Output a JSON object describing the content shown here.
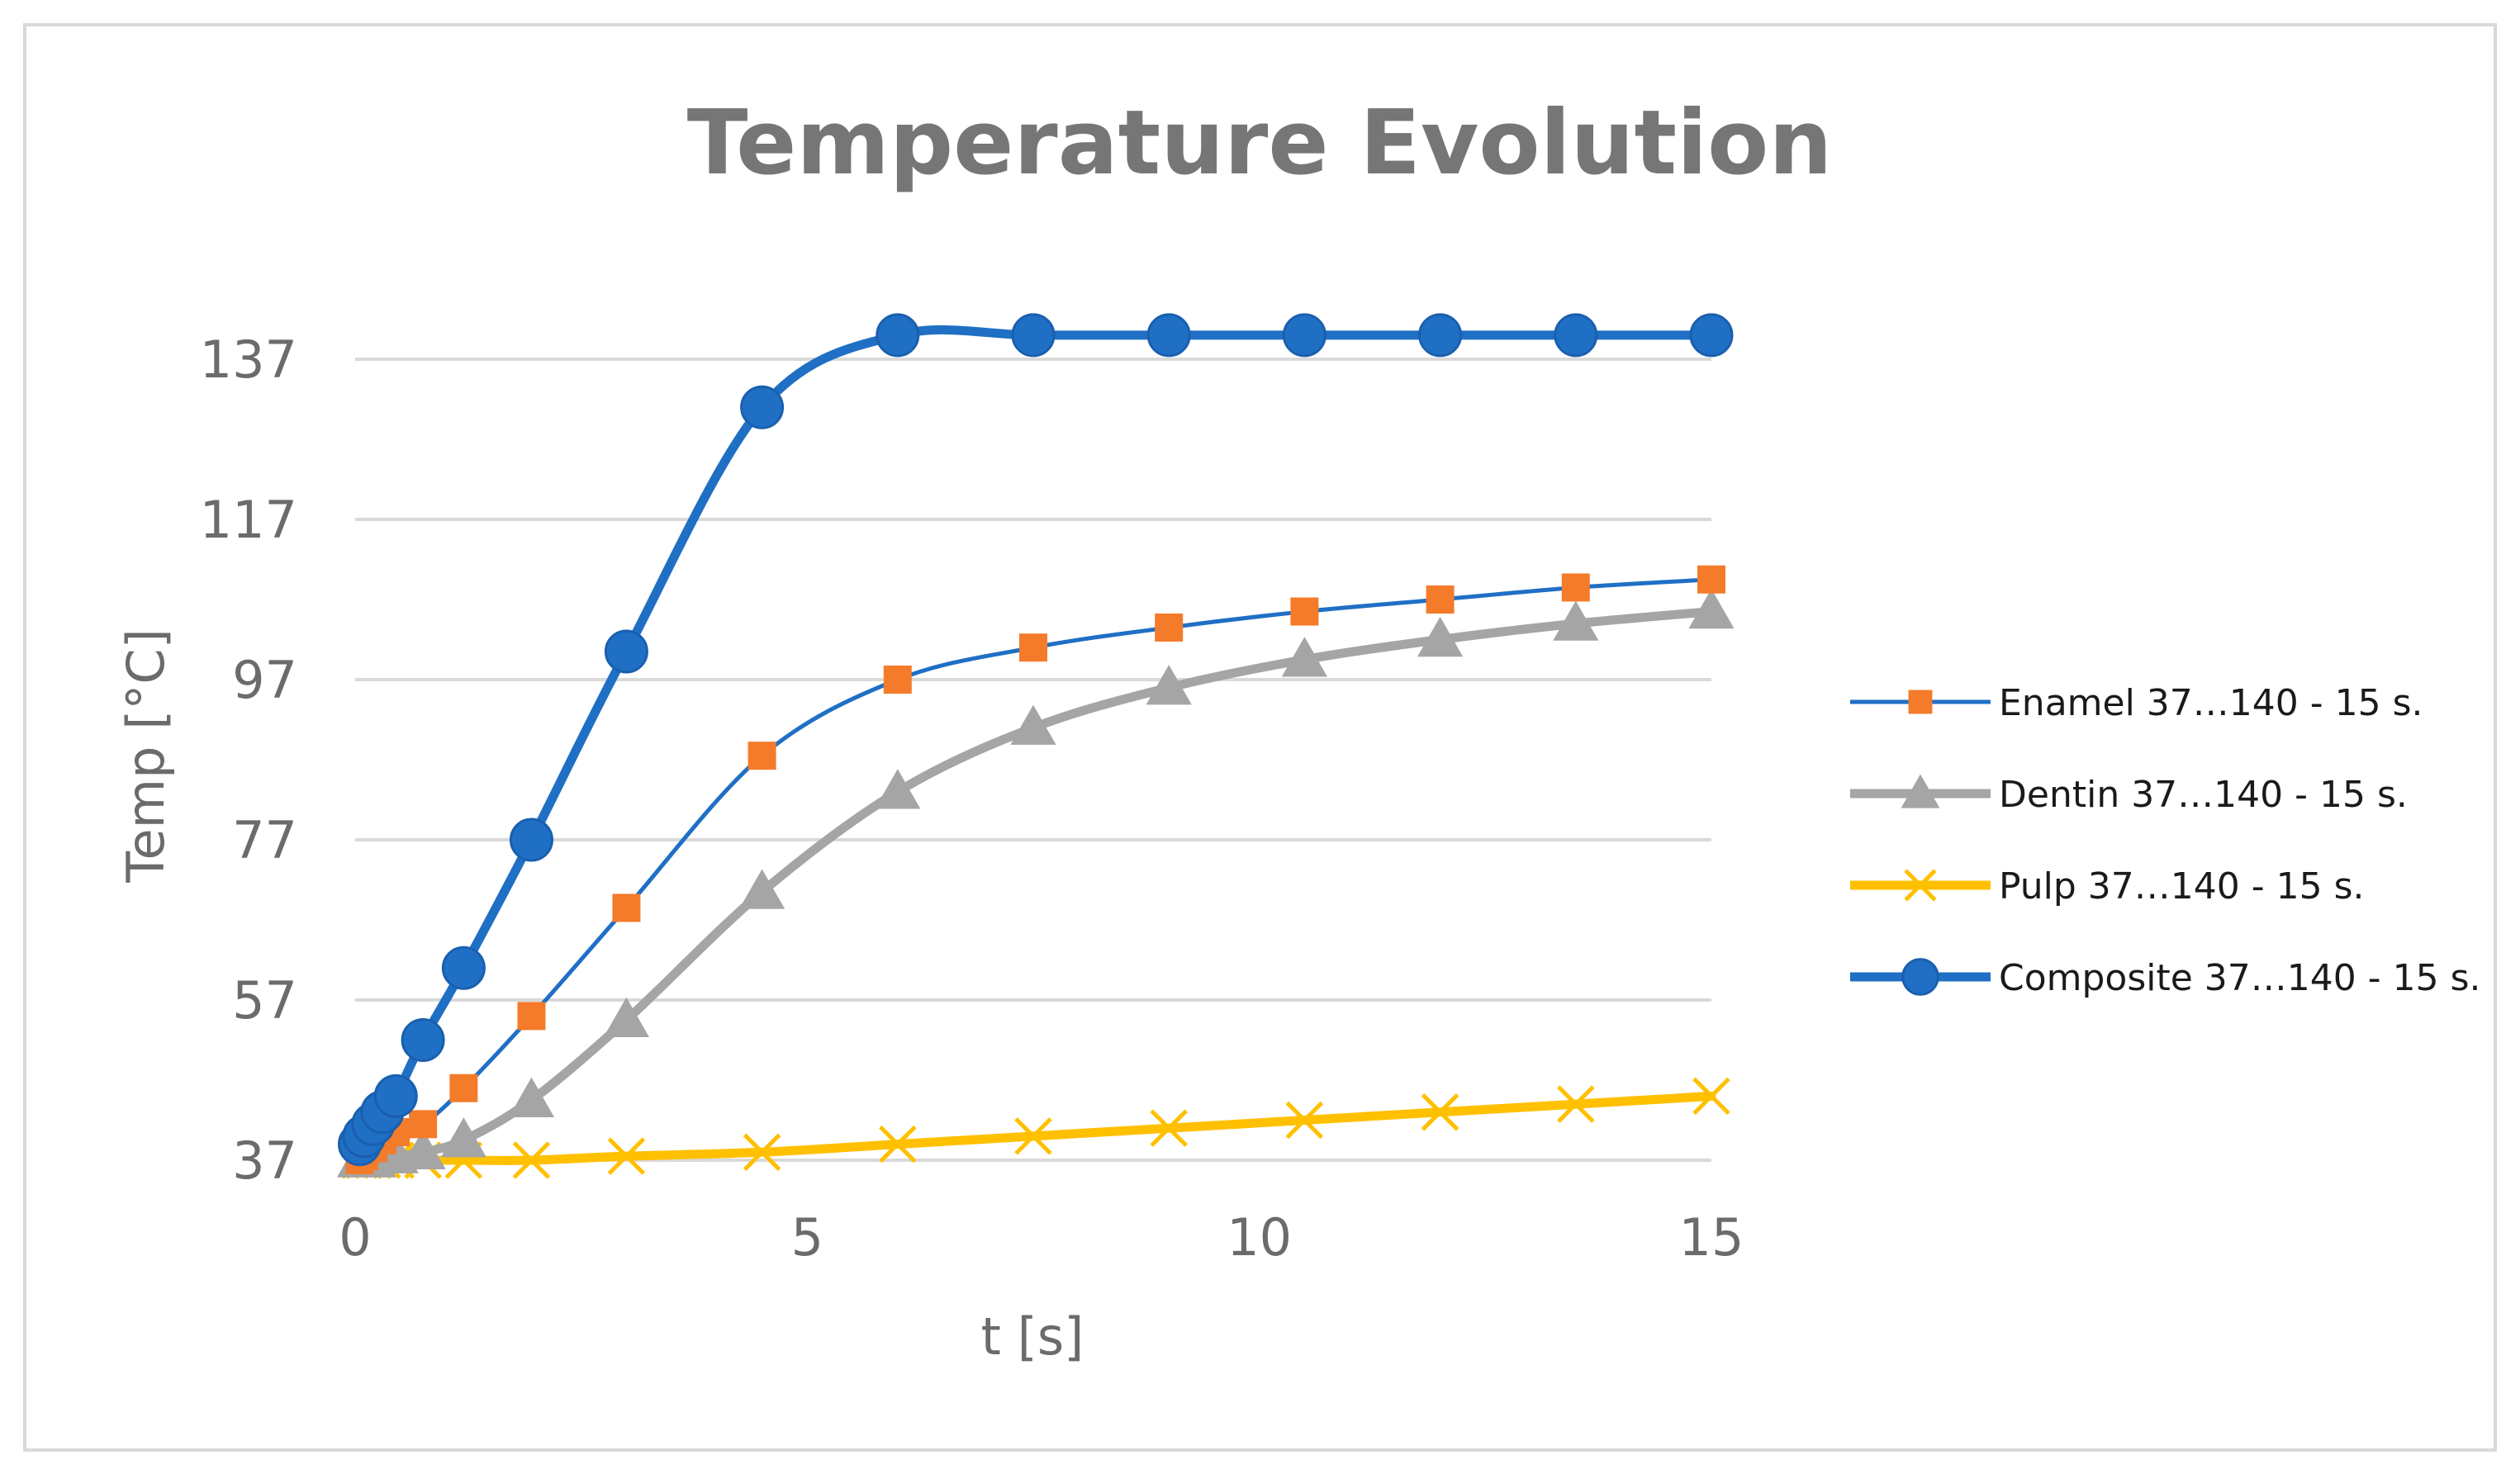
{
  "chart_data": {
    "type": "line",
    "title": "Temperature Evolution",
    "xlabel": "t [s]",
    "ylabel": "Temp [°C]",
    "xlim": [
      0,
      15
    ],
    "ylim": [
      37,
      137
    ],
    "xticks": [
      "0",
      "5",
      "10",
      "15"
    ],
    "xtick_values": [
      0,
      5,
      10,
      15
    ],
    "yticks": [
      "37",
      "57",
      "77",
      "97",
      "117",
      "137"
    ],
    "ytick_values": [
      37,
      57,
      77,
      97,
      117,
      137
    ],
    "grid": true,
    "legend_position": "right",
    "series": [
      {
        "name": "Enamel 37…140 - 15 s.",
        "color": "#1f6fc5",
        "marker_color": "#f47b2a",
        "marker": "square",
        "line_width": "thin",
        "x": [
          0.05,
          0.1,
          0.2,
          0.3,
          0.45,
          0.75,
          1.2,
          1.95,
          3.0,
          4.5,
          6.0,
          7.5,
          9.0,
          10.5,
          12.0,
          13.5,
          15.0
        ],
        "y": [
          37.0,
          37.5,
          38.5,
          39.5,
          40.5,
          41.5,
          46.0,
          55.0,
          68.5,
          87.5,
          97.0,
          101.0,
          103.5,
          105.5,
          107.0,
          108.5,
          109.5
        ]
      },
      {
        "name": "Dentin 37…140 - 15 s.",
        "color": "#a5a5a5",
        "marker_color": "#a5a5a5",
        "marker": "triangle",
        "line_width": "thick",
        "x": [
          0.05,
          0.1,
          0.2,
          0.3,
          0.45,
          0.75,
          1.2,
          1.95,
          3.0,
          4.5,
          6.0,
          7.5,
          9.0,
          10.5,
          12.0,
          13.5,
          15.0
        ],
        "y": [
          37.0,
          37.0,
          37.0,
          37.5,
          37.5,
          38.0,
          39.5,
          44.5,
          54.5,
          70.5,
          83.0,
          91.0,
          96.0,
          99.5,
          102.0,
          104.0,
          105.5
        ]
      },
      {
        "name": "Pulp 37…140 - 15 s.",
        "color": "#ffc000",
        "marker_color": "#ffc000",
        "marker": "x",
        "line_width": "thick",
        "x": [
          0.05,
          0.1,
          0.2,
          0.3,
          0.45,
          0.75,
          1.2,
          1.95,
          3.0,
          4.5,
          6.0,
          7.5,
          9.0,
          10.5,
          12.0,
          13.5,
          15.0
        ],
        "y": [
          37.0,
          37.0,
          37.0,
          37.0,
          37.0,
          37.0,
          37.0,
          37.0,
          37.5,
          38.0,
          39.0,
          40.0,
          41.0,
          42.0,
          43.0,
          44.0,
          45.0
        ]
      },
      {
        "name": "Composite 37…140 - 15 s.",
        "color": "#1f6fc5",
        "marker_color": "#1f6fc5",
        "marker": "circle",
        "line_width": "thick",
        "x": [
          0.05,
          0.1,
          0.2,
          0.3,
          0.45,
          0.75,
          1.2,
          1.95,
          3.0,
          4.5,
          6.0,
          7.5,
          9.0,
          10.5,
          12.0,
          13.5,
          15.0
        ],
        "y": [
          39.0,
          40.0,
          41.5,
          43.0,
          45.0,
          52.0,
          61.0,
          77.0,
          100.5,
          131.0,
          140.0,
          140.0,
          140.0,
          140.0,
          140.0,
          140.0,
          140.0
        ]
      }
    ]
  }
}
